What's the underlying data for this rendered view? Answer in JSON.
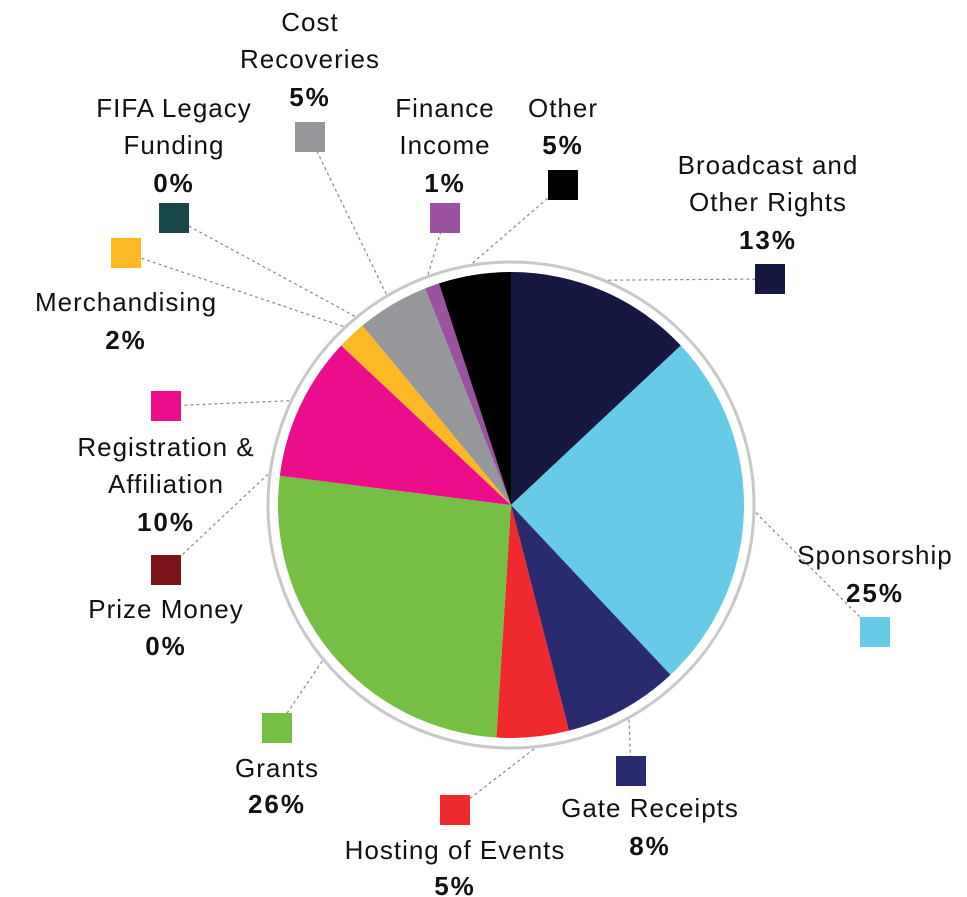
{
  "chart_data": {
    "type": "pie",
    "categories": [
      "Broadcast and Other Rights",
      "Sponsorship",
      "Gate Receipts",
      "Hosting of Events",
      "Grants",
      "Prize Money",
      "Registration & Affiliation",
      "Merchandising",
      "FIFA Legacy Funding",
      "Cost Recoveries",
      "Finance Income",
      "Other"
    ],
    "values": [
      13,
      25,
      8,
      5,
      26,
      0,
      10,
      2,
      0,
      5,
      1,
      5
    ],
    "value_labels": [
      "13%",
      "25%",
      "8%",
      "5%",
      "26%",
      "0%",
      "10%",
      "2%",
      "0%",
      "5%",
      "1%",
      "5%"
    ],
    "colors": [
      "#161842",
      "#67cbe8",
      "#2a2a6e",
      "#ee2a2e",
      "#75bf44",
      "#7a1418",
      "#ec0d8c",
      "#fdb924",
      "#1a4749",
      "#96979b",
      "#9b52a0",
      "#000000"
    ]
  }
}
